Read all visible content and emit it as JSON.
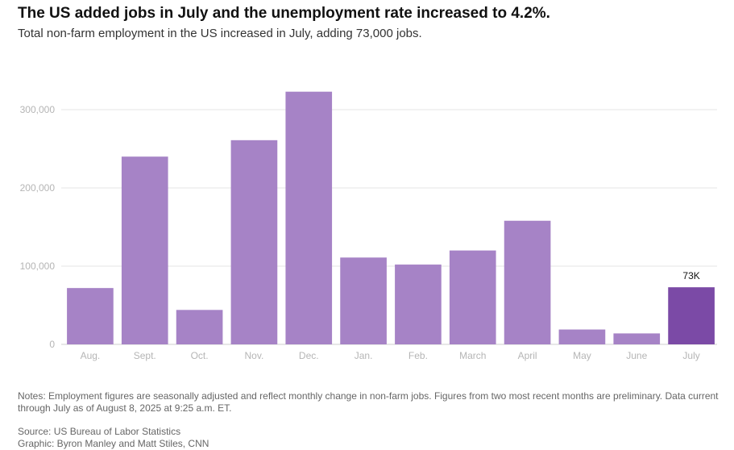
{
  "header": {
    "title": "The US added jobs in July and the unemployment rate increased to 4.2%.",
    "subtitle": "Total non-farm employment in the US increased in July, adding 73,000 jobs."
  },
  "footer": {
    "notes": "Notes: Employment figures are seasonally adjusted and reflect monthly change in non-farm jobs. Figures from two most recent months are preliminary. Data current through July as of August 8, 2025 at 9:25 a.m. ET.",
    "source": "Source: US Bureau of Labor Statistics",
    "credit": "Graphic: Byron Manley and Matt Stiles, CNN"
  },
  "chart_data": {
    "type": "bar",
    "categories": [
      "Aug.",
      "Sept.",
      "Oct.",
      "Nov.",
      "Dec.",
      "Jan.",
      "Feb.",
      "March",
      "April",
      "May",
      "June",
      "July"
    ],
    "values": [
      72000,
      240000,
      44000,
      261000,
      323000,
      111000,
      102000,
      120000,
      158000,
      19000,
      14000,
      73000
    ],
    "ylim": [
      0,
      340000
    ],
    "yticks": [
      0,
      100000,
      200000,
      300000
    ],
    "ytick_labels": [
      "0",
      "100,000",
      "200,000",
      "300,000"
    ],
    "grid": true,
    "highlight_index": 11,
    "highlight_label": "73K",
    "colors": {
      "bar": "#a683c6",
      "highlight": "#7b4aa6",
      "grid": "#e6e6e6",
      "tick_text": "#b5b5b5"
    }
  }
}
